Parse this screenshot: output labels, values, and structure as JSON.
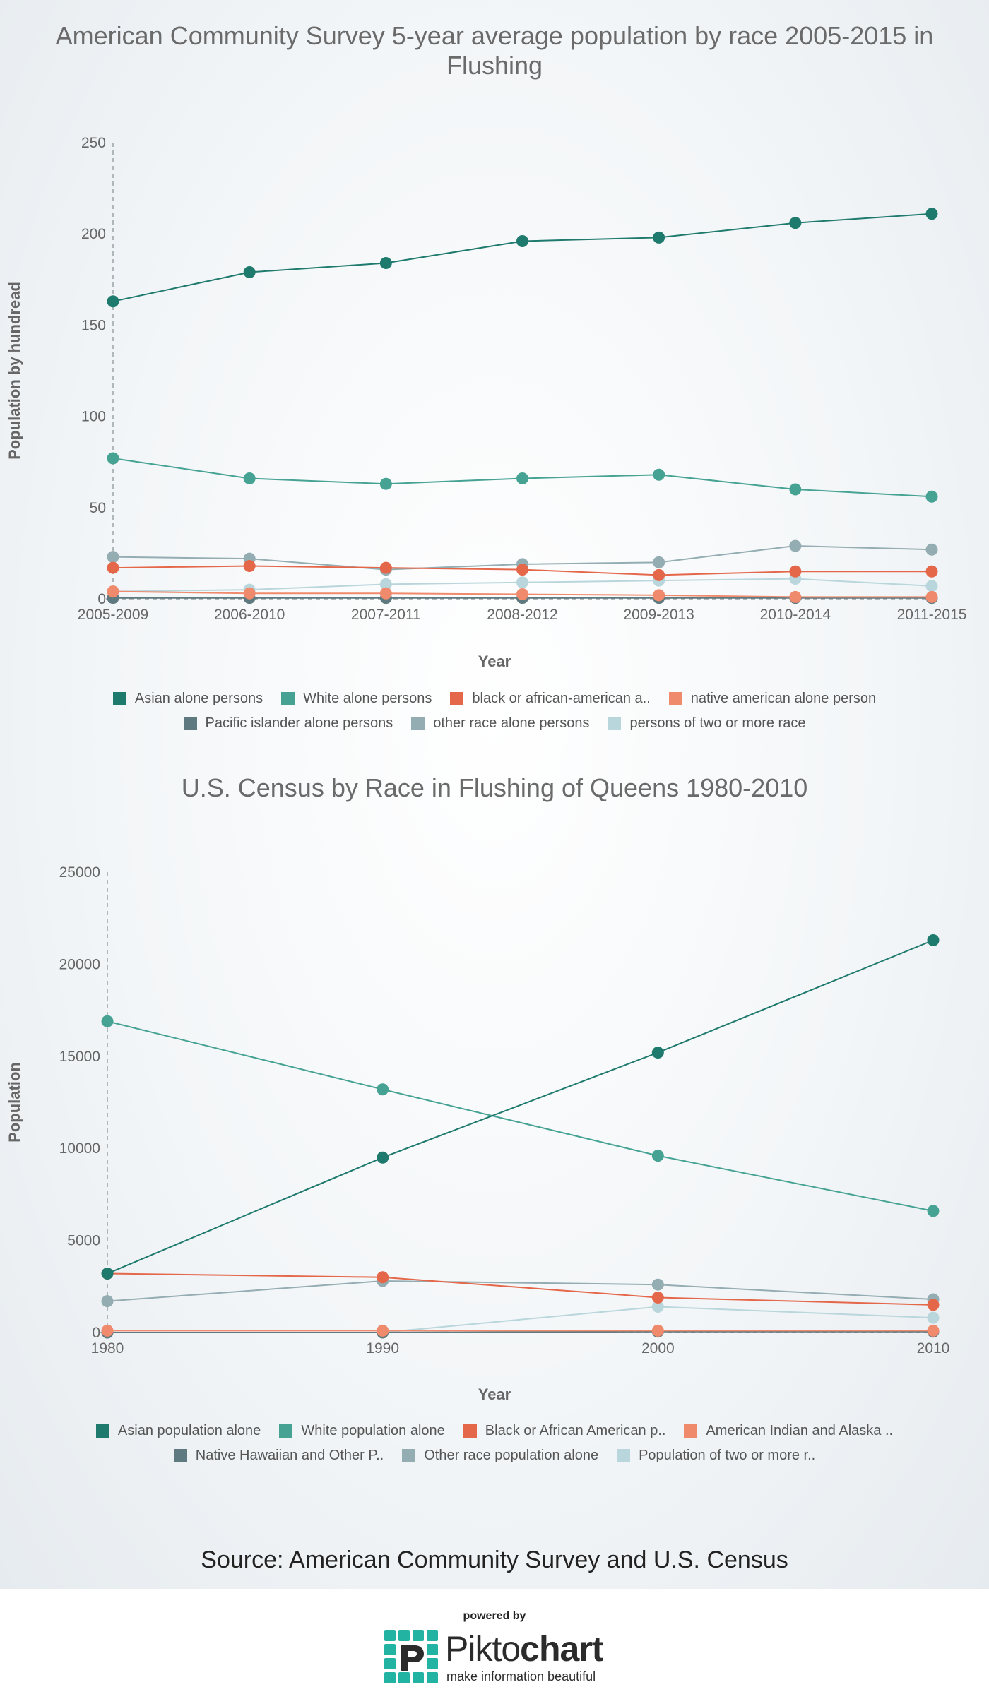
{
  "colors": {
    "asian": "#1f7a6e",
    "white": "#46a394",
    "black": "#e5674a",
    "native": "#f08a6c",
    "pacific": "#5e7a80",
    "other": "#94adb2",
    "two": "#b9d6dc",
    "axis": "#666666",
    "title": "#6a6a6a"
  },
  "chart_data": [
    {
      "type": "line",
      "title": "American Community Survey 5-year average population by race 2005-2015 in Flushing",
      "title_lines": [
        "American Community Survey 5-year average population by race 2005-2015 in",
        "Flushing"
      ],
      "xlabel": "Year",
      "ylabel": "Population by hundread",
      "ylim": [
        0,
        250
      ],
      "yticks": [
        "0",
        "50",
        "100",
        "150",
        "200",
        "250"
      ],
      "categories": [
        "2005-2009",
        "2006-2010",
        "2007-2011",
        "2008-2012",
        "2009-2013",
        "2010-2014",
        "2011-2015"
      ],
      "series": [
        {
          "name": "Asian alone persons",
          "color_key": "asian",
          "values": [
            163,
            179,
            184,
            196,
            198,
            206,
            211
          ]
        },
        {
          "name": "White alone persons",
          "color_key": "white",
          "values": [
            77,
            66,
            63,
            66,
            68,
            60,
            56
          ]
        },
        {
          "name": "black or african-american a..",
          "color_key": "black",
          "values": [
            17,
            18,
            17,
            16,
            13,
            15,
            15
          ]
        },
        {
          "name": "native american alone person",
          "color_key": "native",
          "values": [
            4,
            3,
            3,
            2.5,
            2,
            1,
            1
          ]
        },
        {
          "name": "Pacific islander alone persons",
          "color_key": "pacific",
          "values": [
            0.5,
            0.5,
            0.5,
            0.5,
            0.5,
            0.5,
            0.5
          ]
        },
        {
          "name": "other race alone persons",
          "color_key": "other",
          "values": [
            23,
            22,
            16,
            19,
            20,
            29,
            27
          ]
        },
        {
          "name": "persons of two or more race",
          "color_key": "two",
          "values": [
            4,
            5,
            8,
            9,
            10,
            11,
            7
          ]
        }
      ]
    },
    {
      "type": "line",
      "title": "U.S. Census by Race in Flushing of Queens 1980-2010",
      "title_lines": [
        "U.S. Census by Race in Flushing of Queens 1980-2010"
      ],
      "xlabel": "Year",
      "ylabel": "Population",
      "ylim": [
        0,
        25000
      ],
      "yticks": [
        "0",
        "5000",
        "10000",
        "15000",
        "20000",
        "25000"
      ],
      "categories": [
        "1980",
        "1990",
        "2000",
        "2010"
      ],
      "series": [
        {
          "name": "Asian population alone",
          "color_key": "asian",
          "values": [
            3200,
            9500,
            15200,
            21300
          ]
        },
        {
          "name": "White population alone",
          "color_key": "white",
          "values": [
            16900,
            13200,
            9600,
            6600
          ]
        },
        {
          "name": "Black or African American p..",
          "color_key": "black",
          "values": [
            3200,
            3000,
            1900,
            1500
          ]
        },
        {
          "name": "American Indian and Alaska ..",
          "color_key": "native",
          "values": [
            100,
            100,
            100,
            100
          ]
        },
        {
          "name": "Native Hawaiian and Other P..",
          "color_key": "pacific",
          "values": [
            0,
            0,
            50,
            50
          ]
        },
        {
          "name": "Other race population alone",
          "color_key": "other",
          "values": [
            1700,
            2800,
            2600,
            1800
          ]
        },
        {
          "name": "Population of two or more r..",
          "color_key": "two",
          "values": [
            0,
            0,
            1400,
            800
          ]
        }
      ]
    }
  ],
  "source_text": "Source: American Community Survey and U.S. Census",
  "footer": {
    "powered_by": "powered by",
    "brand_light": "Pikto",
    "brand_bold": "chart",
    "tagline": "make information beautiful"
  }
}
